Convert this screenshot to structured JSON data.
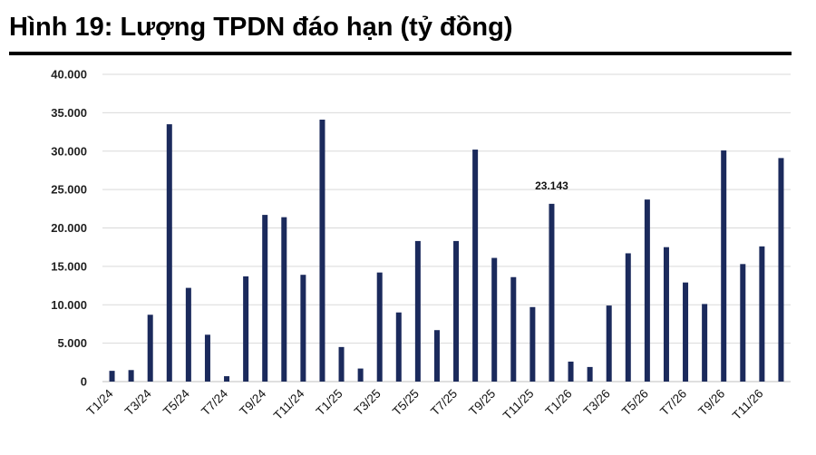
{
  "chart_data": {
    "type": "bar",
    "title": "Hình 19: Lượng TPDN đáo hạn (tỷ đồng)",
    "categories": [
      "T1/24",
      "T2/24",
      "T3/24",
      "T4/24",
      "T5/24",
      "T6/24",
      "T7/24",
      "T8/24",
      "T9/24",
      "T10/24",
      "T11/24",
      "T12/24",
      "T1/25",
      "T2/25",
      "T3/25",
      "T4/25",
      "T5/25",
      "T6/25",
      "T7/25",
      "T8/25",
      "T9/25",
      "T10/25",
      "T11/25",
      "T12/25",
      "T1/26",
      "T2/26",
      "T3/26",
      "T4/26",
      "T5/26",
      "T6/26",
      "T7/26",
      "T8/26",
      "T9/26",
      "T10/26",
      "T11/26",
      "T12/26"
    ],
    "category_labels_shown": [
      "T1/24",
      "",
      "T3/24",
      "",
      "T5/24",
      "",
      "T7/24",
      "",
      "T9/24",
      "",
      "T11/24",
      "",
      "T1/25",
      "",
      "T3/25",
      "",
      "T5/25",
      "",
      "T7/25",
      "",
      "T9/25",
      "",
      "T11/25",
      "",
      "T1/26",
      "",
      "T3/26",
      "",
      "T5/26",
      "",
      "T7/26",
      "",
      "T9/26",
      "",
      "T11/26",
      ""
    ],
    "values": [
      1400,
      1500,
      8700,
      33500,
      12200,
      6100,
      700,
      13700,
      21700,
      21400,
      13900,
      34100,
      4500,
      1700,
      14200,
      9000,
      18300,
      6700,
      18300,
      30200,
      16100,
      13600,
      9700,
      23143,
      2600,
      1900,
      9900,
      16700,
      23700,
      17500,
      12900,
      10100,
      30100,
      15300,
      17600,
      29100
    ],
    "data_labels": [
      {
        "category": "T12/25",
        "text": "23.143"
      }
    ],
    "y_ticks": [
      "0",
      "5.000",
      "10.000",
      "15.000",
      "20.000",
      "25.000",
      "30.000",
      "35.000",
      "40.000"
    ],
    "ylim": [
      0,
      40000
    ],
    "grid": true,
    "legend": "none",
    "colors": {
      "bar": "#1b2a5c",
      "grid": "#d9d9d9",
      "axis": "#bfbfbf"
    }
  }
}
